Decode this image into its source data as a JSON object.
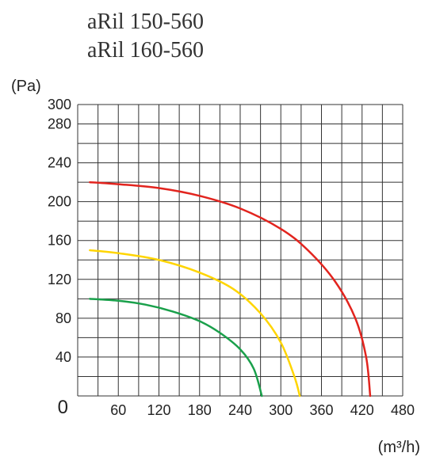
{
  "titles": {
    "line1": "aRil 150-560",
    "line2": "aRil 160-560"
  },
  "y_axis": {
    "unit_label": "(Pa)",
    "ticks": [
      0,
      40,
      80,
      120,
      160,
      200,
      240,
      280,
      300
    ],
    "min": 0,
    "max": 300
  },
  "x_axis": {
    "unit_label": "(m³/h)",
    "ticks": [
      0,
      60,
      120,
      180,
      240,
      300,
      360,
      420,
      480
    ],
    "min": 0,
    "max": 480
  },
  "grid": {
    "color": "#333333",
    "width": 1,
    "x_step": 30,
    "y_step": 20
  },
  "axis": {
    "color": "#000000",
    "width": 2
  },
  "tick_label_fontsize": 18,
  "tick_label_color": "#222222",
  "zero_label_fontsize": 24,
  "background_color": "#ffffff",
  "curves": [
    {
      "name": "green-curve",
      "color": "#1aa04b",
      "width": 2.5,
      "points": [
        [
          18,
          100
        ],
        [
          60,
          98
        ],
        [
          100,
          94
        ],
        [
          140,
          87
        ],
        [
          180,
          77
        ],
        [
          210,
          65
        ],
        [
          240,
          48
        ],
        [
          260,
          28
        ],
        [
          272,
          0
        ]
      ]
    },
    {
      "name": "yellow-curve",
      "color": "#ffd500",
      "width": 2.5,
      "points": [
        [
          18,
          150
        ],
        [
          60,
          147
        ],
        [
          120,
          140
        ],
        [
          180,
          127
        ],
        [
          230,
          110
        ],
        [
          270,
          85
        ],
        [
          300,
          55
        ],
        [
          320,
          20
        ],
        [
          328,
          0
        ]
      ]
    },
    {
      "name": "red-curve",
      "color": "#e2241e",
      "width": 2.5,
      "points": [
        [
          18,
          220
        ],
        [
          60,
          218
        ],
        [
          120,
          214
        ],
        [
          180,
          206
        ],
        [
          240,
          193
        ],
        [
          300,
          172
        ],
        [
          340,
          150
        ],
        [
          380,
          118
        ],
        [
          410,
          80
        ],
        [
          426,
          40
        ],
        [
          432,
          0
        ]
      ]
    }
  ]
}
